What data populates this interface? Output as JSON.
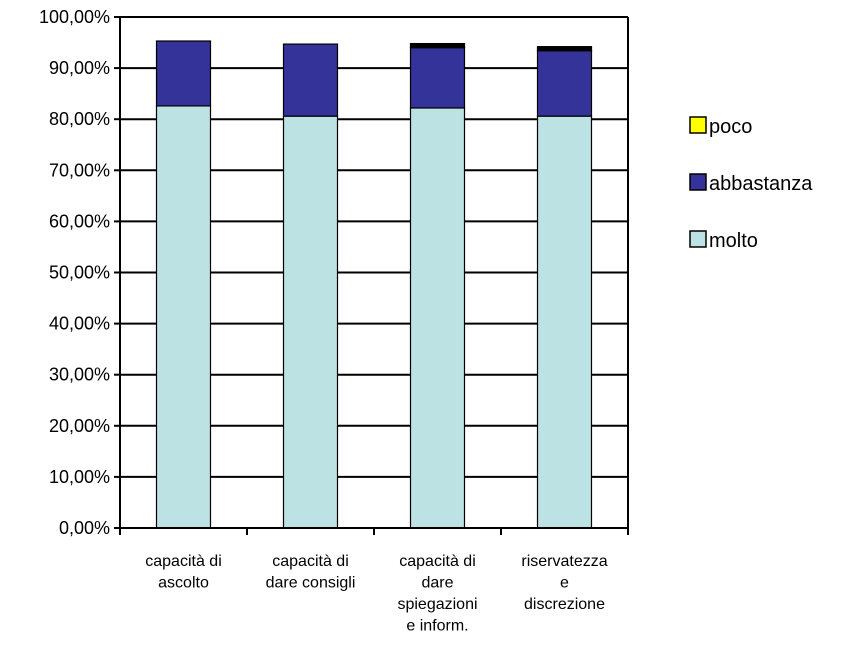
{
  "chart_data": {
    "type": "bar",
    "stacked": true,
    "categories": [
      [
        "capacità di",
        "ascolto"
      ],
      [
        "capacità di",
        "dare consigli"
      ],
      [
        "capacità di",
        "dare",
        "spiegazioni",
        "e inform."
      ],
      [
        "riservatezza",
        "e",
        "discrezione"
      ]
    ],
    "series": [
      {
        "name": "molto",
        "color": "#BCE2E3",
        "values": [
          82.6,
          80.6,
          82.2,
          80.6
        ]
      },
      {
        "name": "abbastanza",
        "color": "#333399",
        "values": [
          12.7,
          14.1,
          11.8,
          12.8
        ]
      },
      {
        "name": "poco",
        "color": "#FFFF00",
        "values": [
          0.0,
          0.0,
          0.1,
          0.1
        ]
      }
    ],
    "other_segment_color": "#000000",
    "bar_tops": [
      95.3,
      94.7,
      94.8,
      94.2
    ],
    "ylim": [
      0,
      100
    ],
    "yticks": [
      "0,00%",
      "10,00%",
      "20,00%",
      "30,00%",
      "40,00%",
      "50,00%",
      "60,00%",
      "70,00%",
      "80,00%",
      "90,00%",
      "100,00%"
    ],
    "legend_order": [
      "poco",
      "abbastanza",
      "molto"
    ],
    "legend_position": "right",
    "grid": true,
    "title": "",
    "xlabel": "",
    "ylabel": ""
  }
}
